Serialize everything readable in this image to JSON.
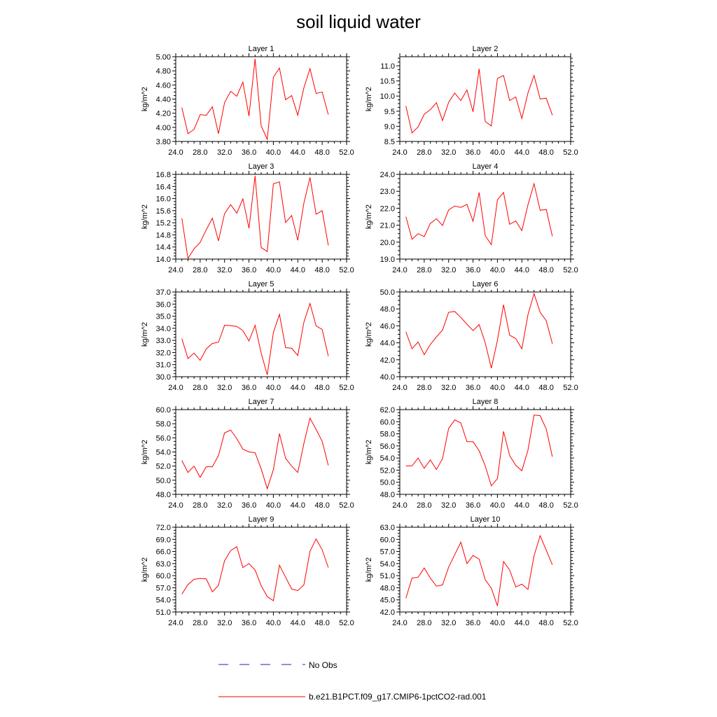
{
  "figure": {
    "title": "soil liquid water"
  },
  "legend": [
    {
      "label": "No Obs",
      "color": "#2222aa",
      "style": "dashed"
    },
    {
      "label": "b.e21.B1PCT.f09_g17.CMIP6-1pctCO2-rad.001",
      "color": "#ff0000",
      "style": "solid"
    }
  ],
  "chart_data": [
    {
      "type": "line",
      "title": "Layer 1",
      "ylabel": "kg/m^2",
      "xlim": [
        24,
        52
      ],
      "ylim": [
        3.8,
        5.0
      ],
      "x_ticks": [
        "24.0",
        "28.0",
        "32.0",
        "36.0",
        "40.0",
        "44.0",
        "48.0",
        "52.0"
      ],
      "y_ticks": [
        "3.80",
        "4.00",
        "4.20",
        "4.40",
        "4.60",
        "4.80",
        "5.00"
      ],
      "series": [
        {
          "name": "b.e21.B1PCT.f09_g17.CMIP6-1pctCO2-rad.001",
          "color": "#ff0000",
          "x": [
            25,
            26,
            27,
            28,
            29,
            30,
            31,
            32,
            33,
            34,
            35,
            36,
            37,
            38,
            39,
            40,
            41,
            42,
            43,
            44,
            45,
            46,
            47,
            48,
            49
          ],
          "y": [
            4.28,
            3.91,
            3.97,
            4.18,
            4.17,
            4.29,
            3.91,
            4.35,
            4.51,
            4.44,
            4.64,
            4.16,
            4.97,
            4.02,
            3.83,
            4.71,
            4.84,
            4.39,
            4.45,
            4.17,
            4.56,
            4.83,
            4.48,
            4.5,
            4.18
          ]
        }
      ]
    },
    {
      "type": "line",
      "title": "Layer 2",
      "ylabel": "kg/m^2",
      "xlim": [
        24,
        52
      ],
      "ylim": [
        8.5,
        11.3
      ],
      "x_ticks": [
        "24.0",
        "28.0",
        "32.0",
        "36.0",
        "40.0",
        "44.0",
        "48.0",
        "52.0"
      ],
      "y_ticks": [
        "8.5",
        "9.0",
        "9.5",
        "10.0",
        "10.5",
        "11.0"
      ],
      "series": [
        {
          "name": "b.e21.B1PCT.f09_g17.CMIP6-1pctCO2-rad.001",
          "color": "#ff0000",
          "x": [
            25,
            26,
            27,
            28,
            29,
            30,
            31,
            32,
            33,
            34,
            35,
            36,
            37,
            38,
            39,
            40,
            41,
            42,
            43,
            44,
            45,
            46,
            47,
            48,
            49
          ],
          "y": [
            9.67,
            8.78,
            8.98,
            9.4,
            9.55,
            9.78,
            9.19,
            9.79,
            10.1,
            9.85,
            10.2,
            9.48,
            10.9,
            9.16,
            9.01,
            10.58,
            10.68,
            9.85,
            9.97,
            9.26,
            10.1,
            10.68,
            9.9,
            9.93,
            9.37
          ]
        }
      ]
    },
    {
      "type": "line",
      "title": "Layer 3",
      "ylabel": "kg/m^2",
      "xlim": [
        24,
        52
      ],
      "ylim": [
        14.0,
        16.8
      ],
      "x_ticks": [
        "24.0",
        "28.0",
        "32.0",
        "36.0",
        "40.0",
        "44.0",
        "48.0",
        "52.0"
      ],
      "y_ticks": [
        "14.0",
        "14.4",
        "14.8",
        "15.2",
        "15.6",
        "16.0",
        "16.4",
        "16.8"
      ],
      "series": [
        {
          "name": "b.e21.B1PCT.f09_g17.CMIP6-1pctCO2-rad.001",
          "color": "#ff0000",
          "x": [
            25,
            26,
            27,
            28,
            29,
            30,
            31,
            32,
            33,
            34,
            35,
            36,
            37,
            38,
            39,
            40,
            41,
            42,
            43,
            44,
            45,
            46,
            47,
            48,
            49
          ],
          "y": [
            15.35,
            14.02,
            14.34,
            14.55,
            14.97,
            15.35,
            14.6,
            15.5,
            15.8,
            15.52,
            15.99,
            15.02,
            16.75,
            14.38,
            14.25,
            16.49,
            16.55,
            15.21,
            15.44,
            14.62,
            15.85,
            16.7,
            15.48,
            15.6,
            14.45
          ]
        }
      ]
    },
    {
      "type": "line",
      "title": "Layer 4",
      "ylabel": "kg/m^2",
      "xlim": [
        24,
        52
      ],
      "ylim": [
        19.0,
        24.0
      ],
      "x_ticks": [
        "24.0",
        "28.0",
        "32.0",
        "36.0",
        "40.0",
        "44.0",
        "48.0",
        "52.0"
      ],
      "y_ticks": [
        "19.0",
        "20.0",
        "21.0",
        "22.0",
        "23.0",
        "24.0"
      ],
      "series": [
        {
          "name": "b.e21.B1PCT.f09_g17.CMIP6-1pctCO2-rad.001",
          "color": "#ff0000",
          "x": [
            25,
            26,
            27,
            28,
            29,
            30,
            31,
            32,
            33,
            34,
            35,
            36,
            37,
            38,
            39,
            40,
            41,
            42,
            43,
            44,
            45,
            46,
            47,
            48,
            49
          ],
          "y": [
            21.5,
            20.17,
            20.5,
            20.33,
            21.1,
            21.38,
            20.98,
            21.9,
            22.13,
            22.05,
            22.23,
            21.23,
            22.93,
            20.38,
            19.85,
            22.5,
            22.93,
            21.05,
            21.25,
            20.68,
            22.2,
            23.45,
            21.88,
            21.93,
            20.35
          ]
        }
      ]
    },
    {
      "type": "line",
      "title": "Layer 5",
      "ylabel": "kg/m^2",
      "xlim": [
        24,
        52
      ],
      "ylim": [
        30.0,
        37.0
      ],
      "x_ticks": [
        "24.0",
        "28.0",
        "32.0",
        "36.0",
        "40.0",
        "44.0",
        "48.0",
        "52.0"
      ],
      "y_ticks": [
        "30.0",
        "31.0",
        "32.0",
        "33.0",
        "34.0",
        "35.0",
        "36.0",
        "37.0"
      ],
      "series": [
        {
          "name": "b.e21.B1PCT.f09_g17.CMIP6-1pctCO2-rad.001",
          "color": "#ff0000",
          "x": [
            25,
            26,
            27,
            28,
            29,
            30,
            31,
            32,
            33,
            34,
            35,
            36,
            37,
            38,
            39,
            40,
            41,
            42,
            43,
            44,
            45,
            46,
            47,
            48,
            49
          ],
          "y": [
            33.15,
            31.5,
            31.95,
            31.35,
            32.3,
            32.75,
            32.85,
            34.25,
            34.22,
            34.15,
            33.82,
            32.95,
            34.25,
            31.95,
            30.15,
            33.65,
            35.15,
            32.4,
            32.35,
            31.75,
            34.5,
            36.05,
            34.2,
            33.9,
            31.7
          ]
        }
      ]
    },
    {
      "type": "line",
      "title": "Layer 6",
      "ylabel": "kg/m^2",
      "xlim": [
        24,
        52
      ],
      "ylim": [
        40.0,
        50.0
      ],
      "x_ticks": [
        "24.0",
        "28.0",
        "32.0",
        "36.0",
        "40.0",
        "44.0",
        "48.0",
        "52.0"
      ],
      "y_ticks": [
        "40.0",
        "42.0",
        "44.0",
        "46.0",
        "48.0",
        "50.0"
      ],
      "series": [
        {
          "name": "b.e21.B1PCT.f09_g17.CMIP6-1pctCO2-rad.001",
          "color": "#ff0000",
          "x": [
            25,
            26,
            27,
            28,
            29,
            30,
            31,
            32,
            33,
            34,
            35,
            36,
            37,
            38,
            39,
            40,
            41,
            42,
            43,
            44,
            45,
            46,
            47,
            48,
            49
          ],
          "y": [
            45.3,
            43.3,
            44.1,
            42.6,
            43.8,
            44.7,
            45.5,
            47.6,
            47.7,
            47.0,
            46.2,
            45.45,
            46.15,
            44.0,
            41.0,
            44.3,
            48.5,
            44.9,
            44.5,
            43.3,
            47.3,
            49.8,
            47.6,
            46.6,
            43.9
          ]
        }
      ]
    },
    {
      "type": "line",
      "title": "Layer 7",
      "ylabel": "kg/m^2",
      "xlim": [
        24,
        52
      ],
      "ylim": [
        48.0,
        60.0
      ],
      "x_ticks": [
        "24.0",
        "28.0",
        "32.0",
        "36.0",
        "40.0",
        "44.0",
        "48.0",
        "52.0"
      ],
      "y_ticks": [
        "48.0",
        "50.0",
        "52.0",
        "54.0",
        "56.0",
        "58.0",
        "60.0"
      ],
      "series": [
        {
          "name": "b.e21.B1PCT.f09_g17.CMIP6-1pctCO2-rad.001",
          "color": "#ff0000",
          "x": [
            25,
            26,
            27,
            28,
            29,
            30,
            31,
            32,
            33,
            34,
            35,
            36,
            37,
            38,
            39,
            40,
            41,
            42,
            43,
            44,
            45,
            46,
            47,
            48,
            49
          ],
          "y": [
            52.8,
            51.1,
            52.0,
            50.4,
            51.9,
            51.9,
            53.5,
            56.7,
            57.1,
            55.9,
            54.4,
            54.0,
            53.9,
            51.6,
            48.8,
            51.5,
            56.6,
            53.1,
            52.0,
            51.1,
            55.2,
            58.8,
            57.2,
            55.5,
            52.1
          ]
        }
      ]
    },
    {
      "type": "line",
      "title": "Layer 8",
      "ylabel": "kg/m^2",
      "xlim": [
        24,
        52
      ],
      "ylim": [
        48.0,
        62.0
      ],
      "x_ticks": [
        "24.0",
        "28.0",
        "32.0",
        "36.0",
        "40.0",
        "44.0",
        "48.0",
        "52.0"
      ],
      "y_ticks": [
        "48.0",
        "50.0",
        "52.0",
        "54.0",
        "56.0",
        "58.0",
        "60.0",
        "62.0"
      ],
      "series": [
        {
          "name": "b.e21.B1PCT.f09_g17.CMIP6-1pctCO2-rad.001",
          "color": "#ff0000",
          "x": [
            25,
            26,
            27,
            28,
            29,
            30,
            31,
            32,
            33,
            34,
            35,
            36,
            37,
            38,
            39,
            40,
            41,
            42,
            43,
            44,
            45,
            46,
            47,
            48,
            49
          ],
          "y": [
            52.7,
            52.7,
            54.0,
            52.3,
            53.7,
            52.1,
            53.9,
            58.9,
            60.3,
            59.8,
            56.7,
            56.7,
            55.2,
            52.7,
            49.4,
            50.6,
            58.4,
            54.4,
            52.8,
            51.9,
            55.3,
            61.1,
            61.0,
            58.8,
            54.2
          ]
        }
      ]
    },
    {
      "type": "line",
      "title": "Layer 9",
      "ylabel": "kg/m^2",
      "xlim": [
        24,
        52
      ],
      "ylim": [
        51.0,
        72.0
      ],
      "x_ticks": [
        "24.0",
        "28.0",
        "32.0",
        "36.0",
        "40.0",
        "44.0",
        "48.0",
        "52.0"
      ],
      "y_ticks": [
        "51.0",
        "54.0",
        "57.0",
        "60.0",
        "63.0",
        "66.0",
        "69.0",
        "72.0"
      ],
      "series": [
        {
          "name": "b.e21.B1PCT.f09_g17.CMIP6-1pctCO2-rad.001",
          "color": "#ff0000",
          "x": [
            25,
            26,
            27,
            28,
            29,
            30,
            31,
            32,
            33,
            34,
            35,
            36,
            37,
            38,
            39,
            40,
            41,
            42,
            43,
            44,
            45,
            46,
            47,
            48,
            49
          ],
          "y": [
            55.4,
            57.8,
            59.1,
            59.3,
            59.2,
            56.0,
            57.6,
            63.7,
            66.2,
            67.2,
            62.0,
            63.0,
            61.4,
            57.5,
            54.8,
            53.8,
            62.6,
            59.6,
            56.7,
            56.3,
            57.7,
            66.0,
            69.1,
            66.4,
            62.0
          ]
        }
      ]
    },
    {
      "type": "line",
      "title": "Layer 10",
      "ylabel": "kg/m^2",
      "xlim": [
        24,
        52
      ],
      "ylim": [
        42.0,
        63.0
      ],
      "x_ticks": [
        "24.0",
        "28.0",
        "32.0",
        "36.0",
        "40.0",
        "44.0",
        "48.0",
        "52.0"
      ],
      "y_ticks": [
        "42.0",
        "45.0",
        "48.0",
        "51.0",
        "54.0",
        "57.0",
        "60.0",
        "63.0"
      ],
      "series": [
        {
          "name": "b.e21.B1PCT.f09_g17.CMIP6-1pctCO2-rad.001",
          "color": "#ff0000",
          "x": [
            25,
            26,
            27,
            28,
            29,
            30,
            31,
            32,
            33,
            34,
            35,
            36,
            37,
            38,
            39,
            40,
            41,
            42,
            43,
            44,
            45,
            46,
            47,
            48,
            49
          ],
          "y": [
            45.4,
            50.4,
            50.6,
            52.9,
            50.4,
            48.4,
            48.7,
            53.1,
            56.2,
            59.3,
            54.0,
            56.0,
            55.1,
            50.0,
            47.9,
            43.5,
            54.5,
            52.4,
            48.2,
            48.9,
            47.6,
            55.9,
            60.9,
            57.3,
            53.7
          ]
        }
      ]
    }
  ]
}
